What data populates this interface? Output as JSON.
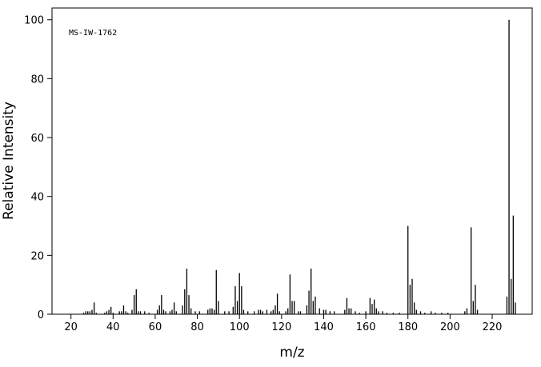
{
  "chart_data": {
    "type": "bar",
    "annotation": "MS-IW-1762",
    "x_label": "m/z",
    "y_label": "Relative Intensity",
    "color": "#000000",
    "xlim": [
      11,
      239
    ],
    "ylim": [
      0,
      104
    ],
    "xticks": [
      20,
      40,
      60,
      80,
      100,
      120,
      140,
      160,
      180,
      200,
      220
    ],
    "yticks": [
      0,
      20,
      40,
      60,
      80,
      100
    ],
    "x": [
      26,
      27,
      28,
      29,
      30,
      31,
      32,
      36,
      37,
      38,
      39,
      40,
      43,
      44,
      45,
      46,
      47,
      49,
      50,
      51,
      52,
      53,
      55,
      57,
      61,
      62,
      63,
      64,
      65,
      67,
      68,
      69,
      70,
      73,
      74,
      75,
      76,
      77,
      79,
      81,
      85,
      86,
      87,
      88,
      89,
      90,
      93,
      95,
      97,
      98,
      99,
      100,
      101,
      102,
      104,
      107,
      109,
      110,
      111,
      113,
      115,
      116,
      117,
      118,
      119,
      122,
      123,
      124,
      125,
      126,
      128,
      129,
      132,
      133,
      134,
      135,
      136,
      138,
      140,
      141,
      143,
      145,
      150,
      151,
      152,
      153,
      155,
      157,
      160,
      162,
      163,
      164,
      165,
      166,
      168,
      170,
      173,
      176,
      180,
      181,
      182,
      183,
      184,
      186,
      188,
      191,
      193,
      196,
      199,
      207,
      208,
      210,
      211,
      212,
      213,
      227,
      228,
      229,
      230,
      231
    ],
    "values": [
      0.5,
      1,
      1,
      1,
      1.5,
      4,
      0.5,
      0.5,
      1,
      1.5,
      2.5,
      0.5,
      1,
      1,
      3,
      1,
      0.5,
      1.5,
      6.5,
      8.5,
      1,
      1,
      1,
      0.5,
      1.5,
      3,
      6.5,
      1.5,
      1,
      1,
      1.5,
      4,
      1,
      3,
      8.5,
      15.5,
      6.5,
      2,
      1,
      1,
      1.5,
      2,
      2,
      1.5,
      15,
      4.5,
      1,
      1,
      2.5,
      9.5,
      4.5,
      14,
      9.5,
      1.5,
      1,
      1,
      1.5,
      1.5,
      1,
      1.5,
      1,
      1.5,
      3,
      7,
      1,
      1,
      2,
      13.5,
      4.5,
      4.5,
      1,
      1,
      3,
      8,
      15.5,
      4.5,
      6,
      2,
      1.5,
      1.5,
      1,
      1,
      1.5,
      5.5,
      2,
      2,
      1,
      0.5,
      1,
      5.5,
      3.5,
      5,
      2,
      1,
      1,
      0.5,
      0.5,
      0.5,
      30,
      10,
      12,
      4,
      1.5,
      1,
      0.5,
      1,
      0.5,
      0.5,
      0.5,
      1,
      2,
      29.5,
      4.5,
      10,
      1.5,
      6,
      100,
      12,
      33.5,
      4
    ]
  }
}
